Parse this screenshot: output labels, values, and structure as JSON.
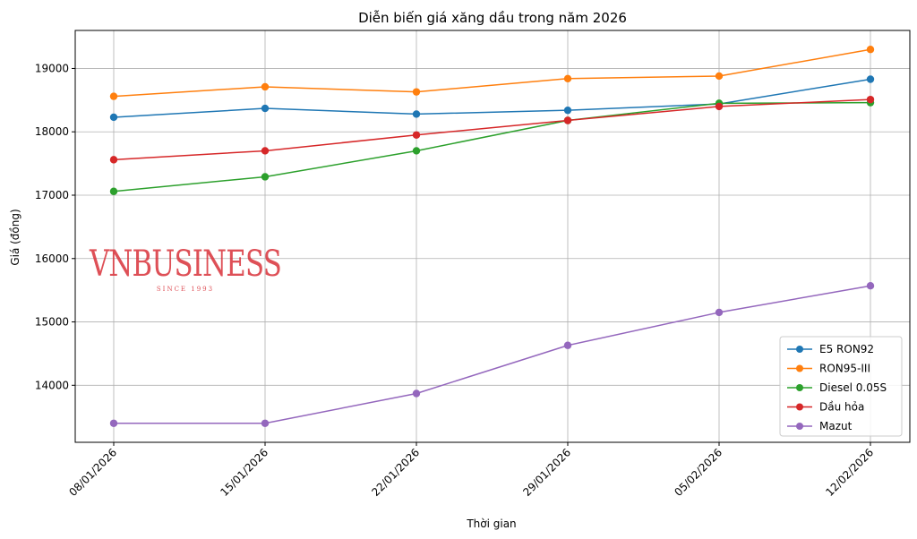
{
  "chart_data": {
    "type": "line",
    "title": "Diễn biến giá xăng dầu trong năm 2026",
    "xlabel": "Thời gian",
    "ylabel": "Giá (đồng)",
    "categories": [
      "08/01/2026",
      "15/01/2026",
      "22/01/2026",
      "29/01/2026",
      "05/02/2026",
      "12/02/2026"
    ],
    "ylim": [
      13100,
      19600
    ],
    "yticks": [
      14000,
      15000,
      16000,
      17000,
      18000,
      19000
    ],
    "grid": true,
    "legend_position": "lower-right",
    "series": [
      {
        "name": "E5 RON92",
        "color": "#1f77b4",
        "values": [
          18230,
          18370,
          18280,
          18340,
          18440,
          18830
        ]
      },
      {
        "name": "RON95-III",
        "color": "#ff7f0e",
        "values": [
          18560,
          18710,
          18630,
          18840,
          18880,
          19300
        ]
      },
      {
        "name": "Diesel 0.05S",
        "color": "#2ca02c",
        "values": [
          17060,
          17290,
          17700,
          18180,
          18450,
          18460
        ]
      },
      {
        "name": "Dầu hỏa",
        "color": "#d62728",
        "values": [
          17560,
          17700,
          17950,
          18180,
          18400,
          18510
        ]
      },
      {
        "name": "Mazut",
        "color": "#9467bd",
        "values": [
          13400,
          13400,
          13870,
          14630,
          15150,
          15570
        ]
      }
    ]
  },
  "watermark": {
    "main": "VNBUSINESS",
    "sub": "SINCE 1993"
  }
}
